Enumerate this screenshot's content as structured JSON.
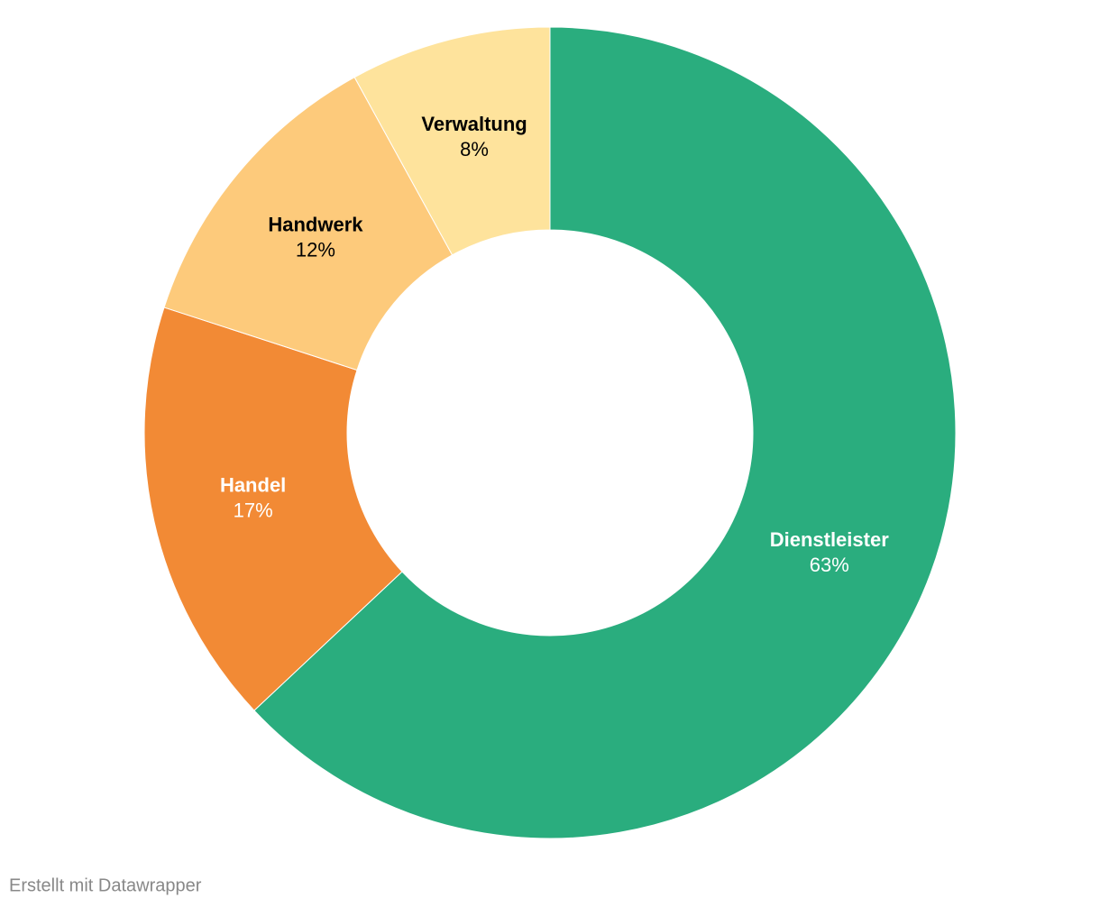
{
  "chart_data": {
    "type": "donut",
    "categories": [
      "Dienstleister",
      "Handel",
      "Handwerk",
      "Verwaltung"
    ],
    "values": [
      63,
      17,
      12,
      8
    ],
    "value_labels": [
      "63%",
      "17%",
      "12%",
      "8%"
    ],
    "colors": [
      "#2aad7e",
      "#f28a35",
      "#fdca7b",
      "#fee39c"
    ],
    "label_colors": [
      "#ffffff",
      "#ffffff",
      "#000000",
      "#000000"
    ],
    "footer": "Erstellt mit Datawrapper"
  }
}
